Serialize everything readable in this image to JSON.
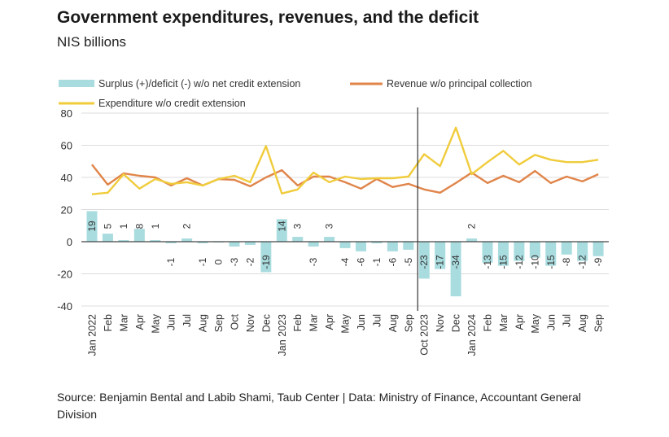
{
  "chart_data": {
    "type": "bar+line",
    "title": "Government expenditures, revenues, and the deficit",
    "subtitle": "NIS billions",
    "source": "Source: Benjamin Bental and Labib Shami, Taub Center | Data: Ministry of Finance, Accountant General Division",
    "categories": [
      "Jan 2022",
      "Feb",
      "Mar",
      "Apr",
      "May",
      "Jun",
      "Jul",
      "Aug",
      "Sep",
      "Oct",
      "Nov",
      "Dec",
      "Jan 2023",
      "Feb",
      "Mar",
      "Apr",
      "May",
      "Jun",
      "Jul",
      "Aug",
      "Sep",
      "Oct 2023",
      "Nov",
      "Dec",
      "Jan 2024",
      "Feb",
      "Mar",
      "Apr",
      "May",
      "Jun",
      "Jul",
      "Aug",
      "Sep"
    ],
    "ylim": [
      -40,
      80
    ],
    "yticks": [
      80,
      60,
      40,
      20,
      0,
      -20,
      -40
    ],
    "grid": true,
    "legend_position": "top",
    "marker_line_at": "Oct 2023",
    "series": [
      {
        "name": "Surplus (+)/deficit (-) w/o net credit extension",
        "type": "bar",
        "color": "#a9dcdf",
        "values": [
          19,
          5,
          1,
          8,
          1,
          -1,
          2,
          -1,
          0,
          -3,
          -2,
          -19,
          14,
          3,
          -3,
          3,
          -4,
          -6,
          -1,
          -6,
          -5,
          -23,
          -17,
          -34,
          2,
          -13,
          -15,
          -12,
          -10,
          -15,
          -8,
          -12,
          -9
        ]
      },
      {
        "name": "Revenue w/o principal collection",
        "type": "line",
        "color": "#e0854a",
        "values": [
          48,
          35.5,
          42.5,
          41,
          40,
          35,
          39.5,
          35,
          39,
          38.5,
          34.5,
          40,
          44.5,
          35,
          40.5,
          40.5,
          37,
          33,
          39,
          34,
          36,
          32.5,
          30.5,
          36.5,
          43,
          36.5,
          41,
          37,
          44,
          36.5,
          40.5,
          37.5,
          42
        ]
      },
      {
        "name": "Expenditure w/o credit extension",
        "type": "line",
        "color": "#f0cc3c",
        "values": [
          29.5,
          30.5,
          42,
          33,
          39,
          36,
          37,
          35,
          39,
          41,
          37,
          59.5,
          30,
          32.5,
          43,
          37,
          40.5,
          39,
          39.5,
          39.5,
          40.5,
          54.5,
          47,
          71,
          42,
          49.5,
          56.5,
          48,
          54,
          51,
          49.5,
          49.5,
          51
        ]
      }
    ]
  }
}
